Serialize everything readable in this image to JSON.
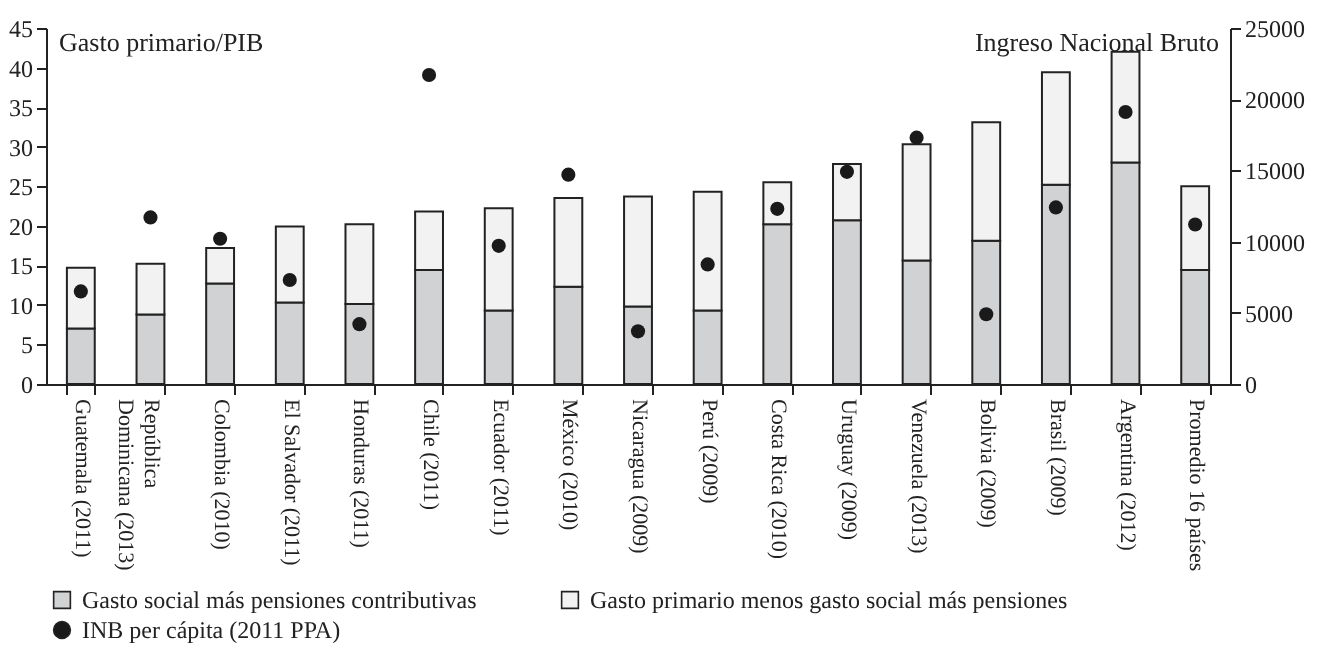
{
  "chart_data": {
    "type": "bar",
    "stacked": true,
    "ylabel": "Gasto primario/PIB",
    "y2label": "Ingreso Nacional Bruto",
    "categories": [
      "Guatemala (2011)",
      "República Dominicana (2013)",
      "Colombia (2010)",
      "El Salvador (2011)",
      "Honduras (2011)",
      "Chile (2011)",
      "Ecuador (2011)",
      "México (2010)",
      "Nicaragua (2009)",
      "Perú (2009)",
      "Costa Rica (2010)",
      "Uruguay (2009)",
      "Venezuela (2013)",
      "Bolivia (2009)",
      "Brasil (2009)",
      "Argentina (2012)",
      "Promedio 16 países"
    ],
    "series": [
      {
        "name": "Gasto social más pensiones contributivas",
        "color": "#d1d2d3",
        "values": [
          7.0,
          8.8,
          12.7,
          10.3,
          10.1,
          14.4,
          9.3,
          12.3,
          9.8,
          9.3,
          20.2,
          20.7,
          15.6,
          18.1,
          25.2,
          28.0,
          14.4
        ]
      },
      {
        "name": "Gasto primario menos gasto social más pensiones",
        "color": "#f2f2f2",
        "values": [
          7.7,
          6.4,
          4.5,
          9.6,
          10.1,
          7.4,
          12.9,
          11.2,
          13.9,
          15.0,
          5.3,
          7.1,
          14.7,
          15.0,
          14.2,
          14.0,
          10.6
        ]
      },
      {
        "name": "INB per cápita (2011 PPA)",
        "type": "scatter",
        "axis": "y2",
        "color": "#1a1a1a",
        "values": [
          6500,
          11700,
          10200,
          7300,
          4200,
          21700,
          9700,
          14700,
          3700,
          8400,
          12300,
          14900,
          17300,
          4900,
          12400,
          19100,
          11200
        ]
      }
    ],
    "ylim": [
      0,
      45
    ],
    "yticks": [
      0,
      5,
      10,
      15,
      20,
      25,
      30,
      35,
      40,
      45
    ],
    "y2lim": [
      0,
      25000
    ],
    "y2ticks": [
      0,
      5000,
      10000,
      15000,
      20000,
      25000
    ],
    "marker": "circle",
    "legend": "bottom",
    "grid": false
  }
}
